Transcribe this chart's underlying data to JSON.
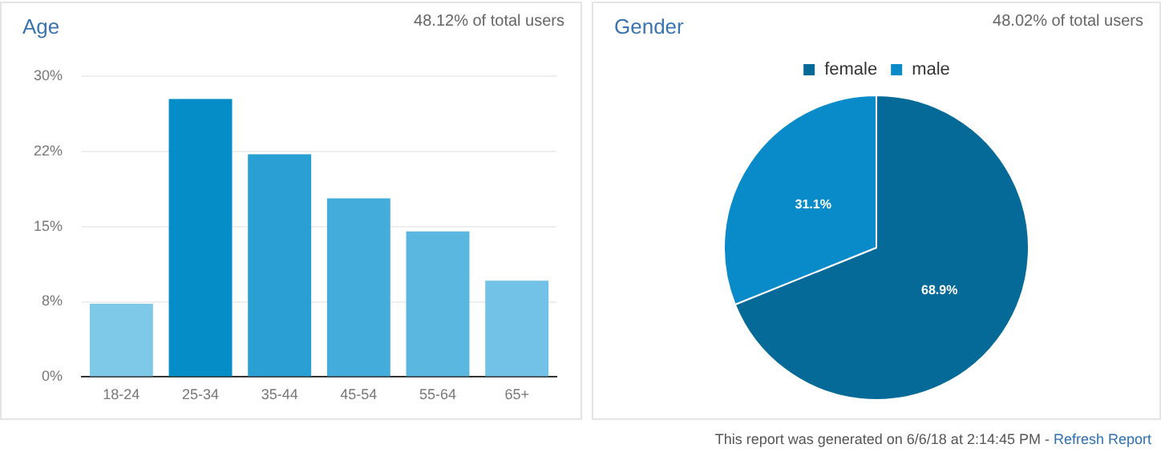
{
  "chart_data": [
    {
      "type": "bar",
      "title": "Age",
      "subtitle": "48.12% of total users",
      "categories": [
        "18-24",
        "25-34",
        "35-44",
        "45-54",
        "55-64",
        "65+"
      ],
      "values": [
        7.3,
        27.7,
        22.2,
        17.8,
        14.5,
        9.6
      ],
      "colors": [
        "#7ec8e8",
        "#058dc7",
        "#2a9fd3",
        "#43acdb",
        "#5ab7e0",
        "#72c1e6"
      ],
      "ylim": [
        0,
        30
      ],
      "yticks": [
        {
          "value": 0,
          "label": "0%"
        },
        {
          "value": 7.5,
          "label": "8%"
        },
        {
          "value": 15,
          "label": "15%"
        },
        {
          "value": 22.5,
          "label": "22%"
        },
        {
          "value": 30,
          "label": "30%"
        }
      ],
      "grid": "y",
      "legend": false
    },
    {
      "type": "pie",
      "title": "Gender",
      "subtitle": "48.02% of total users",
      "categories": [
        "female",
        "male"
      ],
      "values": [
        68.9,
        31.1
      ],
      "colors": [
        "#056a98",
        "#0a8bc9"
      ],
      "value_labels": [
        "68.9%",
        "31.1%"
      ],
      "legend": "top",
      "annotations": [
        "This report was generated on 6/6/18 at 2:14:45 PM - ",
        "Refresh Report"
      ]
    }
  ]
}
